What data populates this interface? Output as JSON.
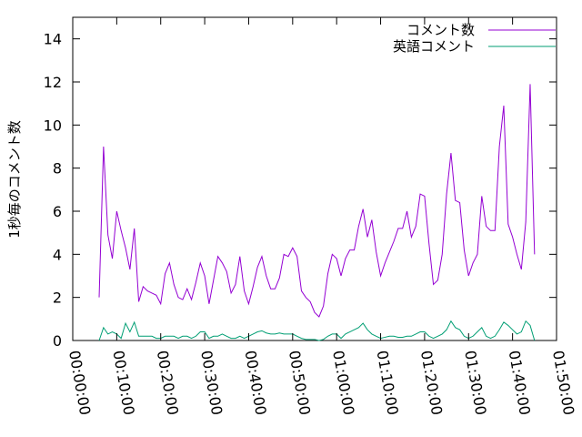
{
  "chart_data": {
    "type": "line",
    "title": "",
    "xlabel": "",
    "ylabel": "1秒毎のコメント数",
    "xlim": [
      0,
      6600
    ],
    "ylim": [
      0,
      15
    ],
    "grid": false,
    "legend_position": "top-right",
    "x_ticks": [
      {
        "value": 0,
        "label": "00:00:00"
      },
      {
        "value": 600,
        "label": "00:10:00"
      },
      {
        "value": 1200,
        "label": "00:20:00"
      },
      {
        "value": 1800,
        "label": "00:30:00"
      },
      {
        "value": 2400,
        "label": "00:40:00"
      },
      {
        "value": 3000,
        "label": "00:50:00"
      },
      {
        "value": 3600,
        "label": "01:00:00"
      },
      {
        "value": 4200,
        "label": "01:10:00"
      },
      {
        "value": 4800,
        "label": "01:20:00"
      },
      {
        "value": 5400,
        "label": "01:30:00"
      },
      {
        "value": 6000,
        "label": "01:40:00"
      },
      {
        "value": 6600,
        "label": "01:50:00"
      }
    ],
    "y_ticks": [
      {
        "value": 0,
        "label": "0"
      },
      {
        "value": 2,
        "label": "2"
      },
      {
        "value": 4,
        "label": "4"
      },
      {
        "value": 6,
        "label": "6"
      },
      {
        "value": 8,
        "label": "8"
      },
      {
        "value": 10,
        "label": "10"
      },
      {
        "value": 12,
        "label": "12"
      },
      {
        "value": 14,
        "label": "14"
      }
    ],
    "series": [
      {
        "name": "コメント数",
        "color": "#9400d3",
        "points": [
          [
            360,
            2.0
          ],
          [
            420,
            9.0
          ],
          [
            480,
            4.9
          ],
          [
            540,
            3.8
          ],
          [
            600,
            6.0
          ],
          [
            660,
            5.1
          ],
          [
            720,
            4.3
          ],
          [
            780,
            3.3
          ],
          [
            840,
            5.2
          ],
          [
            900,
            1.8
          ],
          [
            960,
            2.5
          ],
          [
            1020,
            2.3
          ],
          [
            1080,
            2.2
          ],
          [
            1140,
            2.1
          ],
          [
            1200,
            1.7
          ],
          [
            1260,
            3.1
          ],
          [
            1320,
            3.6
          ],
          [
            1380,
            2.6
          ],
          [
            1440,
            2.0
          ],
          [
            1500,
            1.9
          ],
          [
            1560,
            2.4
          ],
          [
            1620,
            1.9
          ],
          [
            1680,
            2.7
          ],
          [
            1740,
            3.6
          ],
          [
            1800,
            3.0
          ],
          [
            1860,
            1.7
          ],
          [
            1920,
            2.8
          ],
          [
            1980,
            3.9
          ],
          [
            2040,
            3.6
          ],
          [
            2100,
            3.2
          ],
          [
            2160,
            2.2
          ],
          [
            2220,
            2.6
          ],
          [
            2280,
            3.9
          ],
          [
            2340,
            2.3
          ],
          [
            2400,
            1.7
          ],
          [
            2460,
            2.5
          ],
          [
            2520,
            3.4
          ],
          [
            2580,
            3.9
          ],
          [
            2640,
            3.0
          ],
          [
            2700,
            2.4
          ],
          [
            2760,
            2.4
          ],
          [
            2820,
            2.9
          ],
          [
            2880,
            4.0
          ],
          [
            2940,
            3.9
          ],
          [
            3000,
            4.3
          ],
          [
            3060,
            3.9
          ],
          [
            3120,
            2.3
          ],
          [
            3180,
            2.0
          ],
          [
            3240,
            1.8
          ],
          [
            3300,
            1.3
          ],
          [
            3360,
            1.1
          ],
          [
            3420,
            1.6
          ],
          [
            3480,
            3.1
          ],
          [
            3540,
            4.0
          ],
          [
            3600,
            3.8
          ],
          [
            3660,
            3.0
          ],
          [
            3720,
            3.8
          ],
          [
            3780,
            4.2
          ],
          [
            3840,
            4.2
          ],
          [
            3900,
            5.3
          ],
          [
            3960,
            6.1
          ],
          [
            4020,
            4.8
          ],
          [
            4080,
            5.6
          ],
          [
            4140,
            4.1
          ],
          [
            4200,
            3.0
          ],
          [
            4260,
            3.6
          ],
          [
            4320,
            4.1
          ],
          [
            4380,
            4.6
          ],
          [
            4440,
            5.2
          ],
          [
            4500,
            5.2
          ],
          [
            4560,
            6.0
          ],
          [
            4620,
            4.8
          ],
          [
            4680,
            5.3
          ],
          [
            4740,
            6.8
          ],
          [
            4800,
            6.7
          ],
          [
            4860,
            4.5
          ],
          [
            4920,
            2.6
          ],
          [
            4980,
            2.8
          ],
          [
            5040,
            4.0
          ],
          [
            5100,
            6.8
          ],
          [
            5160,
            8.7
          ],
          [
            5220,
            6.5
          ],
          [
            5280,
            6.4
          ],
          [
            5340,
            4.2
          ],
          [
            5400,
            3.0
          ],
          [
            5460,
            3.6
          ],
          [
            5520,
            4.0
          ],
          [
            5580,
            6.7
          ],
          [
            5640,
            5.3
          ],
          [
            5700,
            5.1
          ],
          [
            5760,
            5.1
          ],
          [
            5820,
            9.0
          ],
          [
            5880,
            10.9
          ],
          [
            5940,
            5.4
          ],
          [
            6000,
            4.8
          ],
          [
            6060,
            4.0
          ],
          [
            6120,
            3.3
          ],
          [
            6180,
            5.5
          ],
          [
            6240,
            11.9
          ],
          [
            6300,
            4.0
          ]
        ]
      },
      {
        "name": "英語コメント",
        "color": "#009e73",
        "points": [
          [
            360,
            0.0
          ],
          [
            420,
            0.6
          ],
          [
            480,
            0.3
          ],
          [
            540,
            0.4
          ],
          [
            600,
            0.3
          ],
          [
            660,
            0.1
          ],
          [
            720,
            0.8
          ],
          [
            780,
            0.4
          ],
          [
            840,
            0.85
          ],
          [
            900,
            0.2
          ],
          [
            960,
            0.2
          ],
          [
            1020,
            0.2
          ],
          [
            1080,
            0.2
          ],
          [
            1140,
            0.1
          ],
          [
            1200,
            0.1
          ],
          [
            1260,
            0.2
          ],
          [
            1320,
            0.2
          ],
          [
            1380,
            0.2
          ],
          [
            1440,
            0.1
          ],
          [
            1500,
            0.2
          ],
          [
            1560,
            0.2
          ],
          [
            1620,
            0.1
          ],
          [
            1680,
            0.2
          ],
          [
            1740,
            0.4
          ],
          [
            1800,
            0.4
          ],
          [
            1860,
            0.1
          ],
          [
            1920,
            0.2
          ],
          [
            1980,
            0.2
          ],
          [
            2040,
            0.3
          ],
          [
            2100,
            0.2
          ],
          [
            2160,
            0.1
          ],
          [
            2220,
            0.1
          ],
          [
            2280,
            0.2
          ],
          [
            2340,
            0.1
          ],
          [
            2400,
            0.2
          ],
          [
            2460,
            0.3
          ],
          [
            2520,
            0.4
          ],
          [
            2580,
            0.45
          ],
          [
            2640,
            0.35
          ],
          [
            2700,
            0.3
          ],
          [
            2760,
            0.3
          ],
          [
            2820,
            0.35
          ],
          [
            2880,
            0.3
          ],
          [
            2940,
            0.3
          ],
          [
            3000,
            0.3
          ],
          [
            3060,
            0.2
          ],
          [
            3120,
            0.1
          ],
          [
            3180,
            0.05
          ],
          [
            3240,
            0.05
          ],
          [
            3300,
            0.05
          ],
          [
            3360,
            0.0
          ],
          [
            3420,
            0.05
          ],
          [
            3480,
            0.2
          ],
          [
            3540,
            0.3
          ],
          [
            3600,
            0.3
          ],
          [
            3660,
            0.1
          ],
          [
            3720,
            0.3
          ],
          [
            3780,
            0.4
          ],
          [
            3840,
            0.5
          ],
          [
            3900,
            0.6
          ],
          [
            3960,
            0.8
          ],
          [
            4020,
            0.5
          ],
          [
            4080,
            0.3
          ],
          [
            4140,
            0.2
          ],
          [
            4200,
            0.1
          ],
          [
            4260,
            0.15
          ],
          [
            4320,
            0.2
          ],
          [
            4380,
            0.2
          ],
          [
            4440,
            0.15
          ],
          [
            4500,
            0.15
          ],
          [
            4560,
            0.2
          ],
          [
            4620,
            0.2
          ],
          [
            4680,
            0.3
          ],
          [
            4740,
            0.4
          ],
          [
            4800,
            0.4
          ],
          [
            4860,
            0.2
          ],
          [
            4920,
            0.1
          ],
          [
            4980,
            0.2
          ],
          [
            5040,
            0.3
          ],
          [
            5100,
            0.5
          ],
          [
            5160,
            0.9
          ],
          [
            5220,
            0.6
          ],
          [
            5280,
            0.5
          ],
          [
            5340,
            0.2
          ],
          [
            5400,
            0.1
          ],
          [
            5460,
            0.2
          ],
          [
            5520,
            0.4
          ],
          [
            5580,
            0.6
          ],
          [
            5640,
            0.2
          ],
          [
            5700,
            0.1
          ],
          [
            5760,
            0.2
          ],
          [
            5820,
            0.5
          ],
          [
            5880,
            0.85
          ],
          [
            5940,
            0.7
          ],
          [
            6000,
            0.5
          ],
          [
            6060,
            0.3
          ],
          [
            6120,
            0.4
          ],
          [
            6180,
            0.9
          ],
          [
            6240,
            0.7
          ],
          [
            6300,
            0.0
          ]
        ]
      }
    ]
  }
}
